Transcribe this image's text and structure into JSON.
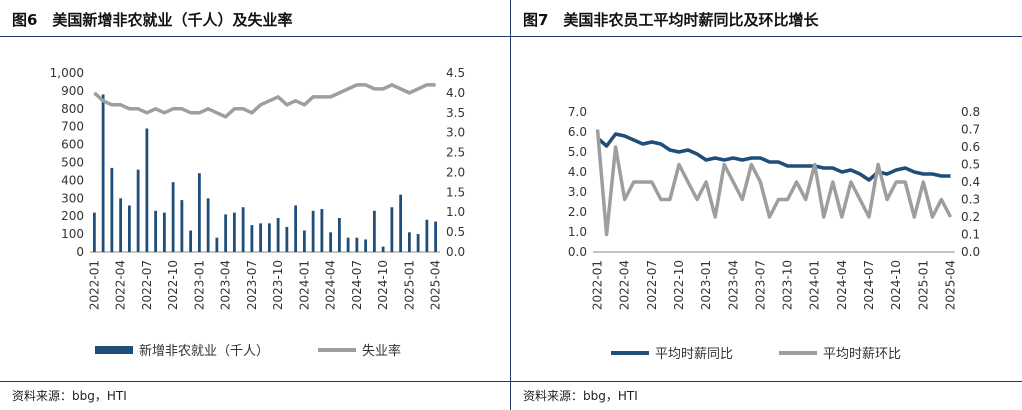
{
  "colors": {
    "bar": "#1f4e79",
    "line_dark": "#1f4e79",
    "line_gray": "#9e9e9e",
    "rule": "#1f3864"
  },
  "chart_data": [
    {
      "type": "bar",
      "title": "图6　美国新增非农就业（千人）及失业率",
      "source": "资料来源：bbg，HTI",
      "x_labels": [
        "2022-01",
        "2022-04",
        "2022-07",
        "2022-10",
        "2023-01",
        "2023-04",
        "2023-07",
        "2023-10",
        "2024-01",
        "2024-04",
        "2024-07",
        "2024-10",
        "2025-01",
        "2025-04"
      ],
      "x_label_index": [
        0,
        3,
        6,
        9,
        12,
        15,
        18,
        21,
        24,
        27,
        30,
        33,
        36,
        39
      ],
      "y_left": {
        "ticks": [
          "0",
          "100",
          "200",
          "300",
          "400",
          "500",
          "600",
          "700",
          "800",
          "900",
          "1,000"
        ],
        "range": [
          0,
          1000
        ]
      },
      "y_right": {
        "ticks": [
          "0.0",
          "0.5",
          "1.0",
          "1.5",
          "2.0",
          "2.5",
          "3.0",
          "3.5",
          "4.0",
          "4.5"
        ],
        "range": [
          0,
          4.5
        ]
      },
      "series": [
        {
          "name": "新增非农就业（千人）",
          "kind": "bar",
          "axis": "left",
          "values": [
            220,
            880,
            470,
            300,
            260,
            460,
            690,
            230,
            220,
            390,
            290,
            120,
            440,
            300,
            80,
            210,
            220,
            250,
            150,
            160,
            160,
            190,
            140,
            260,
            120,
            230,
            240,
            110,
            190,
            80,
            80,
            70,
            230,
            30,
            250,
            320,
            110,
            100,
            180,
            170
          ]
        },
        {
          "name": "失业率",
          "kind": "line",
          "axis": "right",
          "values": [
            4.0,
            3.8,
            3.7,
            3.7,
            3.6,
            3.6,
            3.5,
            3.6,
            3.5,
            3.6,
            3.6,
            3.5,
            3.5,
            3.6,
            3.5,
            3.4,
            3.6,
            3.6,
            3.5,
            3.7,
            3.8,
            3.9,
            3.7,
            3.8,
            3.7,
            3.9,
            3.9,
            3.9,
            4.0,
            4.1,
            4.2,
            4.2,
            4.1,
            4.1,
            4.2,
            4.1,
            4.0,
            4.1,
            4.2,
            4.2
          ]
        }
      ],
      "legend": [
        "新增非农就业（千人）",
        "失业率"
      ],
      "legend_position": "bottom"
    },
    {
      "type": "line",
      "title": "图7　美国非农员工平均时薪同比及环比增长",
      "source": "资料来源：bbg，HTI",
      "x_labels": [
        "2022-01",
        "2022-04",
        "2022-07",
        "2022-10",
        "2023-01",
        "2023-04",
        "2023-07",
        "2023-10",
        "2024-01",
        "2024-04",
        "2024-07",
        "2024-10",
        "2025-01",
        "2025-04"
      ],
      "x_label_index": [
        0,
        3,
        6,
        9,
        12,
        15,
        18,
        21,
        24,
        27,
        30,
        33,
        36,
        39
      ],
      "y_left": {
        "ticks": [
          "0.0",
          "1.0",
          "2.0",
          "3.0",
          "4.0",
          "5.0",
          "6.0",
          "7.0"
        ],
        "range": [
          0,
          7
        ]
      },
      "y_right": {
        "ticks": [
          "0.0",
          "0.1",
          "0.2",
          "0.3",
          "0.4",
          "0.5",
          "0.6",
          "0.7",
          "0.8"
        ],
        "range": [
          0,
          0.8
        ]
      },
      "series": [
        {
          "name": "平均时薪同比",
          "kind": "line",
          "axis": "left",
          "values": [
            5.7,
            5.3,
            5.9,
            5.8,
            5.6,
            5.4,
            5.5,
            5.4,
            5.1,
            5.0,
            5.1,
            4.9,
            4.6,
            4.7,
            4.6,
            4.7,
            4.6,
            4.7,
            4.7,
            4.5,
            4.5,
            4.3,
            4.3,
            4.3,
            4.3,
            4.2,
            4.2,
            4.0,
            4.1,
            3.9,
            3.6,
            4.0,
            3.9,
            4.1,
            4.2,
            4.0,
            3.9,
            3.9,
            3.8,
            3.8
          ]
        },
        {
          "name": "平均时薪环比",
          "kind": "line",
          "axis": "right",
          "values": [
            0.7,
            0.1,
            0.6,
            0.3,
            0.4,
            0.4,
            0.4,
            0.3,
            0.3,
            0.5,
            0.4,
            0.3,
            0.4,
            0.2,
            0.5,
            0.4,
            0.3,
            0.5,
            0.4,
            0.2,
            0.3,
            0.3,
            0.4,
            0.3,
            0.5,
            0.2,
            0.4,
            0.2,
            0.4,
            0.3,
            0.2,
            0.5,
            0.3,
            0.4,
            0.4,
            0.2,
            0.4,
            0.2,
            0.3,
            0.2
          ]
        }
      ],
      "legend": [
        "平均时薪同比",
        "平均时薪环比"
      ],
      "legend_position": "bottom"
    }
  ]
}
